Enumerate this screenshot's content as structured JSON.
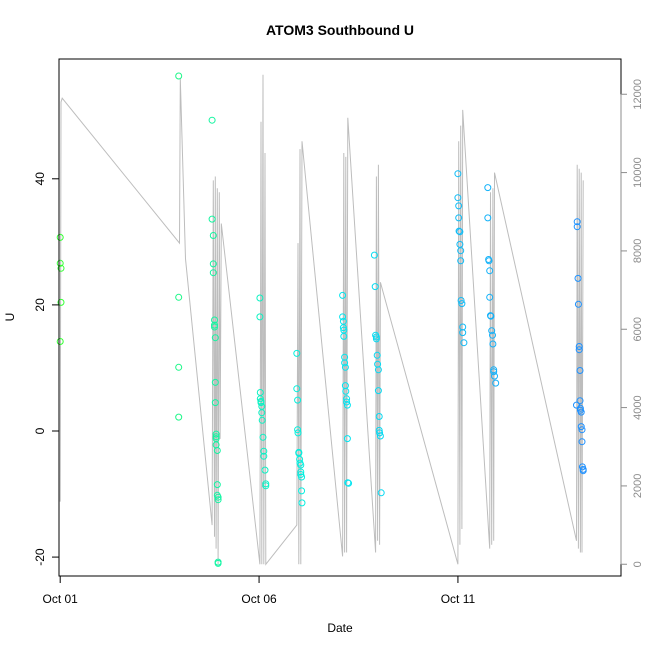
{
  "chart_data": {
    "type": "scatter",
    "title": "ATOM3 Southbound U",
    "xlabel": "Date",
    "ylabel": "U",
    "x_ticks": [
      "Oct 01",
      "Oct 06",
      "Oct 11"
    ],
    "x_tick_days": [
      1,
      6,
      11
    ],
    "xlim": [
      0.97,
      15.1
    ],
    "ylim": [
      -23,
      59
    ],
    "y_ticks": [
      -20,
      0,
      20,
      40
    ],
    "y2lim": [
      -300,
      12900
    ],
    "y2_ticks": [
      0,
      2000,
      4000,
      6000,
      8000,
      10000,
      12000
    ],
    "grid": false,
    "colors": {
      "axis": "#000000",
      "secondary_axis": "#8c8c8c",
      "line": "#bdbdbd",
      "point_gradient": [
        "#33ff33",
        "#00eeee",
        "#1e90ff"
      ]
    },
    "series": [
      {
        "role": "points (U, left axis)",
        "x": [
          1.0,
          1.0,
          1.02,
          1.02,
          1.0,
          3.98,
          3.98,
          3.98,
          3.98,
          4.82,
          4.82,
          4.85,
          4.85,
          4.85,
          4.88,
          4.88,
          4.88,
          4.9,
          4.9,
          4.9,
          4.92,
          4.92,
          4.92,
          4.92,
          4.95,
          4.95,
          4.95,
          4.97,
          4.97,
          4.97,
          4.97,
          6.02,
          6.02,
          6.03,
          6.03,
          6.05,
          6.05,
          6.07,
          6.07,
          6.08,
          6.1,
          6.12,
          6.12,
          6.15,
          6.17,
          6.17,
          6.95,
          6.95,
          6.97,
          6.97,
          6.98,
          7.0,
          7.0,
          7.02,
          7.03,
          7.05,
          7.05,
          7.05,
          7.07,
          7.07,
          7.08,
          8.1,
          8.1,
          8.12,
          8.12,
          8.13,
          8.13,
          8.15,
          8.15,
          8.17,
          8.17,
          8.18,
          8.2,
          8.2,
          8.22,
          8.22,
          8.23,
          8.25,
          8.9,
          8.92,
          8.93,
          8.95,
          8.95,
          8.97,
          8.98,
          9.0,
          9.0,
          9.02,
          9.02,
          9.03,
          9.05,
          9.07,
          11.0,
          11.0,
          11.02,
          11.02,
          11.03,
          11.05,
          11.05,
          11.07,
          11.07,
          11.08,
          11.1,
          11.12,
          11.12,
          11.15,
          11.75,
          11.75,
          11.77,
          11.78,
          11.8,
          11.8,
          11.82,
          11.83,
          11.85,
          11.87,
          11.88,
          11.9,
          11.9,
          11.92,
          11.95,
          13.98,
          14.0,
          14.0,
          14.02,
          14.03,
          14.05,
          14.05,
          14.07,
          14.07,
          14.08,
          14.08,
          14.1,
          14.1,
          14.12,
          14.12,
          14.13,
          14.15,
          14.15
        ],
        "y": [
          30.7,
          26.6,
          25.8,
          20.4,
          14.2,
          21.2,
          10.1,
          2.2,
          56.3,
          49.3,
          33.6,
          31.0,
          26.5,
          25.1,
          17.6,
          16.8,
          16.5,
          14.8,
          7.7,
          4.5,
          -0.9,
          -1.2,
          -0.5,
          -2.2,
          -3.1,
          -8.5,
          -10.2,
          -10.5,
          -10.9,
          -21.0,
          -20.8,
          21.1,
          18.1,
          6.1,
          5.1,
          4.7,
          4.5,
          3.9,
          2.9,
          1.7,
          -1.0,
          -3.2,
          -4.0,
          -6.2,
          -8.4,
          -8.7,
          12.3,
          6.7,
          4.9,
          0.2,
          -0.3,
          -3.4,
          -3.5,
          -4.5,
          -5.1,
          -5.4,
          -6.5,
          -6.9,
          -7.3,
          -9.5,
          -11.4,
          21.5,
          18.1,
          17.4,
          16.4,
          16.0,
          15.0,
          11.7,
          10.8,
          10.1,
          7.2,
          6.3,
          5.1,
          4.6,
          4.1,
          -1.2,
          -8.2,
          -8.3,
          27.9,
          22.9,
          15.2,
          14.9,
          14.6,
          12.0,
          10.6,
          9.7,
          6.4,
          2.3,
          0.1,
          -0.3,
          -0.8,
          -9.8,
          40.8,
          37.0,
          35.7,
          33.8,
          31.7,
          31.6,
          29.6,
          28.6,
          27.0,
          20.7,
          20.2,
          16.5,
          15.6,
          14.0,
          38.6,
          33.8,
          27.2,
          27.0,
          25.4,
          21.2,
          18.3,
          18.2,
          15.9,
          15.2,
          13.8,
          9.7,
          9.4,
          8.7,
          7.6,
          4.1,
          33.2,
          32.4,
          24.2,
          20.1,
          13.4,
          12.9,
          9.6,
          4.8,
          3.6,
          3.3,
          3.0,
          0.7,
          0.2,
          -1.7,
          -5.7,
          -6.1,
          -6.3
        ]
      },
      {
        "role": "line (right axis)",
        "x": [
          1.0,
          1.02,
          1.05,
          4.0,
          4.02,
          4.15,
          4.82,
          4.85,
          4.88,
          4.9,
          4.92,
          4.95,
          4.97,
          5.0,
          5.02,
          5.05,
          6.02,
          6.05,
          6.07,
          6.1,
          6.12,
          6.15,
          6.17,
          6.95,
          6.98,
          7.0,
          7.03,
          7.05,
          7.08,
          8.1,
          8.13,
          8.15,
          8.18,
          8.2,
          8.23,
          8.93,
          8.95,
          8.98,
          9.0,
          9.03,
          9.05,
          11.0,
          11.02,
          11.05,
          11.07,
          11.1,
          11.12,
          11.8,
          11.82,
          11.85,
          11.88,
          11.9,
          11.92,
          13.98,
          14.0,
          14.03,
          14.05,
          14.08,
          14.1,
          14.12,
          14.15
        ],
        "y2": [
          1600,
          11800,
          11900,
          8200,
          12400,
          7800,
          1000,
          9800,
          700,
          9900,
          400,
          9600,
          0,
          9500,
          3200,
          8700,
          0,
          11300,
          0,
          12500,
          0,
          10500,
          0,
          1000,
          8200,
          0,
          10600,
          0,
          10800,
          200,
          10500,
          300,
          10400,
          300,
          11400,
          300,
          9900,
          600,
          10200,
          500,
          7200,
          0,
          10800,
          500,
          11200,
          900,
          11600,
          400,
          9500,
          500,
          9600,
          600,
          10000,
          600,
          10200,
          400,
          10100,
          300,
          10000,
          300,
          9800
        ]
      }
    ]
  }
}
